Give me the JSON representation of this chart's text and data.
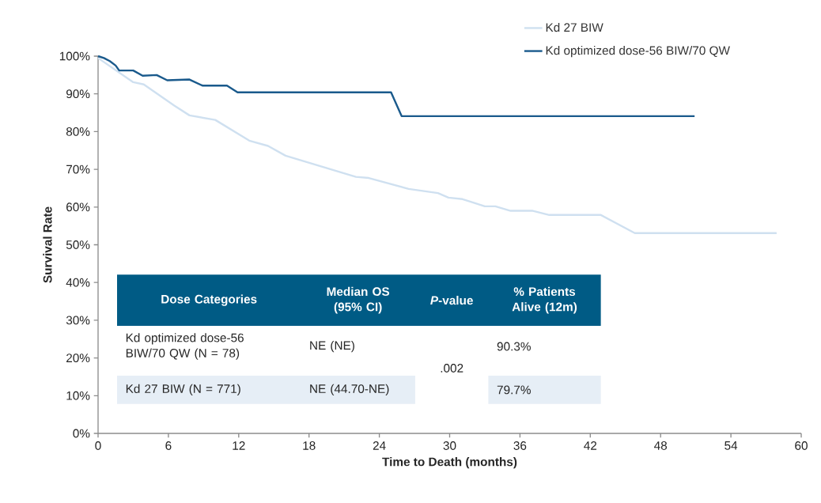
{
  "chart_data": {
    "type": "line",
    "xlabel": "Time to Death (months)",
    "ylabel": "Survival Rate",
    "xlim": [
      0,
      60
    ],
    "xticks": [
      0,
      6,
      12,
      18,
      24,
      30,
      36,
      42,
      48,
      54,
      60
    ],
    "ylim": [
      0,
      100
    ],
    "yticks": [
      {
        "value": 0,
        "label": "0%"
      },
      {
        "value": 10,
        "label": "10%"
      },
      {
        "value": 20,
        "label": "20%"
      },
      {
        "value": 30,
        "label": "30%"
      },
      {
        "value": 40,
        "label": "40%"
      },
      {
        "value": 50,
        "label": "50%"
      },
      {
        "value": 60,
        "label": "60%"
      },
      {
        "value": 70,
        "label": "70%"
      },
      {
        "value": 80,
        "label": "80%"
      },
      {
        "value": 90,
        "label": "90%"
      },
      {
        "value": 100,
        "label": "100%"
      }
    ],
    "legend": "top right",
    "grid": false,
    "marker": "none",
    "line_style": "solid",
    "series": [
      {
        "name": "Kd 27 BIW",
        "color": "#cfe0f0",
        "x": [
          0,
          3,
          3.9,
          6.5,
          7.8,
          10,
          12.9,
          14.5,
          16,
          22,
          23.1,
          26.5,
          29,
          29.9,
          31.1,
          33,
          33.9,
          35.2,
          37.1,
          38.5,
          42.9,
          45.8,
          57.9
        ],
        "values": [
          99.5,
          93.1,
          92.5,
          86.9,
          84.3,
          83.1,
          77.6,
          76.2,
          73.6,
          68,
          67.7,
          64.8,
          63.7,
          62.5,
          62.1,
          60.2,
          60.2,
          59,
          59,
          57.9,
          57.9,
          53.1,
          53.1
        ]
      },
      {
        "name": "Kd optimized dose-56 BIW/70 QW",
        "color": "#1a5a8c",
        "x": [
          0,
          0.5,
          1,
          1.5,
          1.8,
          3,
          3.8,
          5,
          5.9,
          7.8,
          8.9,
          11,
          11.9,
          25,
          25.9,
          50.9
        ],
        "values": [
          100,
          99.5,
          98.7,
          97.5,
          96.2,
          96.2,
          94.8,
          95,
          93.6,
          93.8,
          92.2,
          92.2,
          90.4,
          90.4,
          84.1,
          84.1
        ]
      }
    ],
    "annotations": [
      "Dose Categories",
      "Median OS (95% CI)",
      "*P*-value",
      "% Patients Alive (12m)",
      "Kd optimized dose-56 BIW/70 QW (N = 78)",
      "NE (NE)",
      ".002",
      "90.3%",
      "Kd 27 BIW (N = 771)",
      "NE (44.70-NE)",
      "79.7%"
    ]
  }
}
